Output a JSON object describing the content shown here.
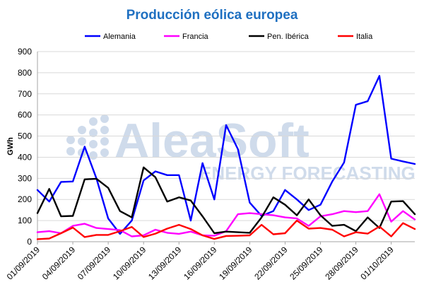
{
  "chart_data": {
    "type": "line",
    "title": "Producción eólica europea",
    "ylabel": "GWh",
    "xlabel": "",
    "ylim": [
      0,
      900
    ],
    "yticks": [
      0,
      100,
      200,
      300,
      400,
      500,
      600,
      700,
      800,
      900
    ],
    "grid": true,
    "legend_position": "top",
    "x": [
      "01/09/2019",
      "02/09/2019",
      "03/09/2019",
      "04/09/2019",
      "05/09/2019",
      "06/09/2019",
      "07/09/2019",
      "08/09/2019",
      "09/09/2019",
      "10/09/2019",
      "11/09/2019",
      "12/09/2019",
      "13/09/2019",
      "14/09/2019",
      "15/09/2019",
      "16/09/2019",
      "17/09/2019",
      "18/09/2019",
      "19/09/2019",
      "20/09/2019",
      "21/09/2019",
      "22/09/2019",
      "23/09/2019",
      "24/09/2019",
      "25/09/2019",
      "26/09/2019",
      "27/09/2019",
      "28/09/2019",
      "29/09/2019",
      "30/09/2019",
      "01/10/2019",
      "02/10/2019",
      "03/10/2019"
    ],
    "x_tick_labels": [
      "01/09/2019",
      "04/09/2019",
      "07/09/2019",
      "10/09/2019",
      "13/09/2019",
      "16/09/2019",
      "19/09/2019",
      "22/09/2019",
      "25/09/2019",
      "28/09/2019",
      "01/10/2019"
    ],
    "series": [
      {
        "name": "Alemania",
        "color": "#0000ff",
        "values": [
          245,
          190,
          283,
          285,
          450,
          300,
          110,
          37,
          100,
          290,
          333,
          315,
          315,
          100,
          372,
          200,
          552,
          438,
          185,
          122,
          145,
          245,
          200,
          150,
          175,
          285,
          375,
          648,
          665,
          785,
          393,
          380,
          368
        ]
      },
      {
        "name": "Francia",
        "color": "#ff00ff",
        "values": [
          45,
          50,
          40,
          75,
          85,
          65,
          60,
          55,
          25,
          30,
          57,
          42,
          37,
          48,
          30,
          28,
          50,
          130,
          135,
          130,
          125,
          115,
          110,
          75,
          120,
          130,
          145,
          140,
          145,
          225,
          95,
          145,
          105
        ]
      },
      {
        "name": "Pen. Ibérica",
        "color": "#000000",
        "values": [
          135,
          250,
          120,
          122,
          295,
          298,
          255,
          145,
          115,
          352,
          305,
          190,
          210,
          195,
          120,
          40,
          48,
          45,
          42,
          115,
          210,
          175,
          125,
          200,
          125,
          75,
          80,
          50,
          115,
          65,
          190,
          192,
          130
        ]
      },
      {
        "name": "Italia",
        "color": "#ff0000",
        "values": [
          12,
          15,
          40,
          67,
          22,
          32,
          32,
          50,
          70,
          22,
          38,
          62,
          80,
          60,
          30,
          13,
          27,
          28,
          30,
          80,
          35,
          40,
          100,
          62,
          65,
          57,
          25,
          45,
          38,
          72,
          25,
          88,
          60
        ]
      }
    ]
  },
  "watermark": {
    "brand": "AleaSoft",
    "tagline": "ENERGY FORECASTING"
  }
}
